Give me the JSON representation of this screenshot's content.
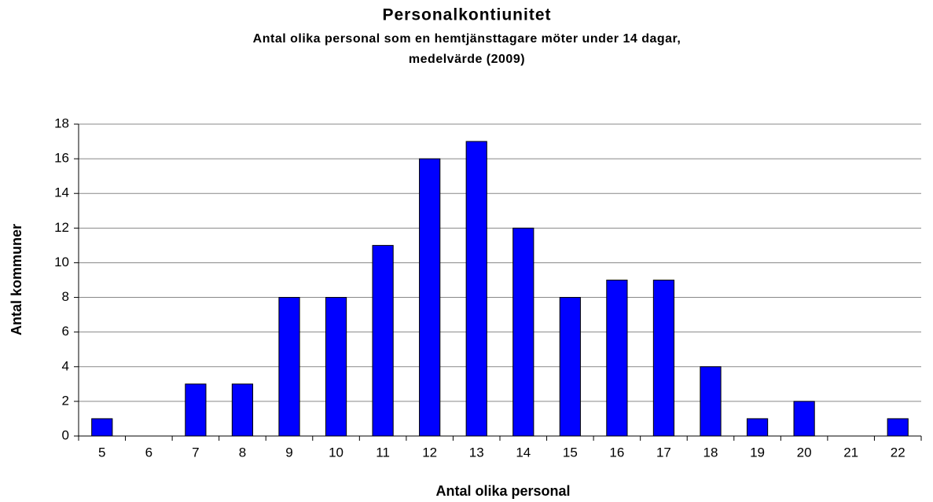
{
  "chart_data": {
    "type": "bar",
    "title": "Personalkontiunitet",
    "subtitle": [
      "Antal olika personal som en hemtjänsttagare möter under 14 dagar,",
      "medelvärde (2009)"
    ],
    "xlabel": "Antal olika personal",
    "ylabel": "Antal kommuner",
    "categories": [
      "5",
      "6",
      "7",
      "8",
      "9",
      "10",
      "11",
      "12",
      "13",
      "14",
      "15",
      "16",
      "17",
      "18",
      "19",
      "20",
      "21",
      "22"
    ],
    "values": [
      1,
      0,
      3,
      3,
      8,
      8,
      11,
      16,
      17,
      12,
      8,
      9,
      9,
      4,
      1,
      2,
      0,
      1
    ],
    "color": "#0000ff",
    "ylim": [
      0,
      18
    ],
    "yticks": [
      0,
      2,
      4,
      6,
      8,
      10,
      12,
      14,
      16,
      18
    ],
    "grid": true
  }
}
